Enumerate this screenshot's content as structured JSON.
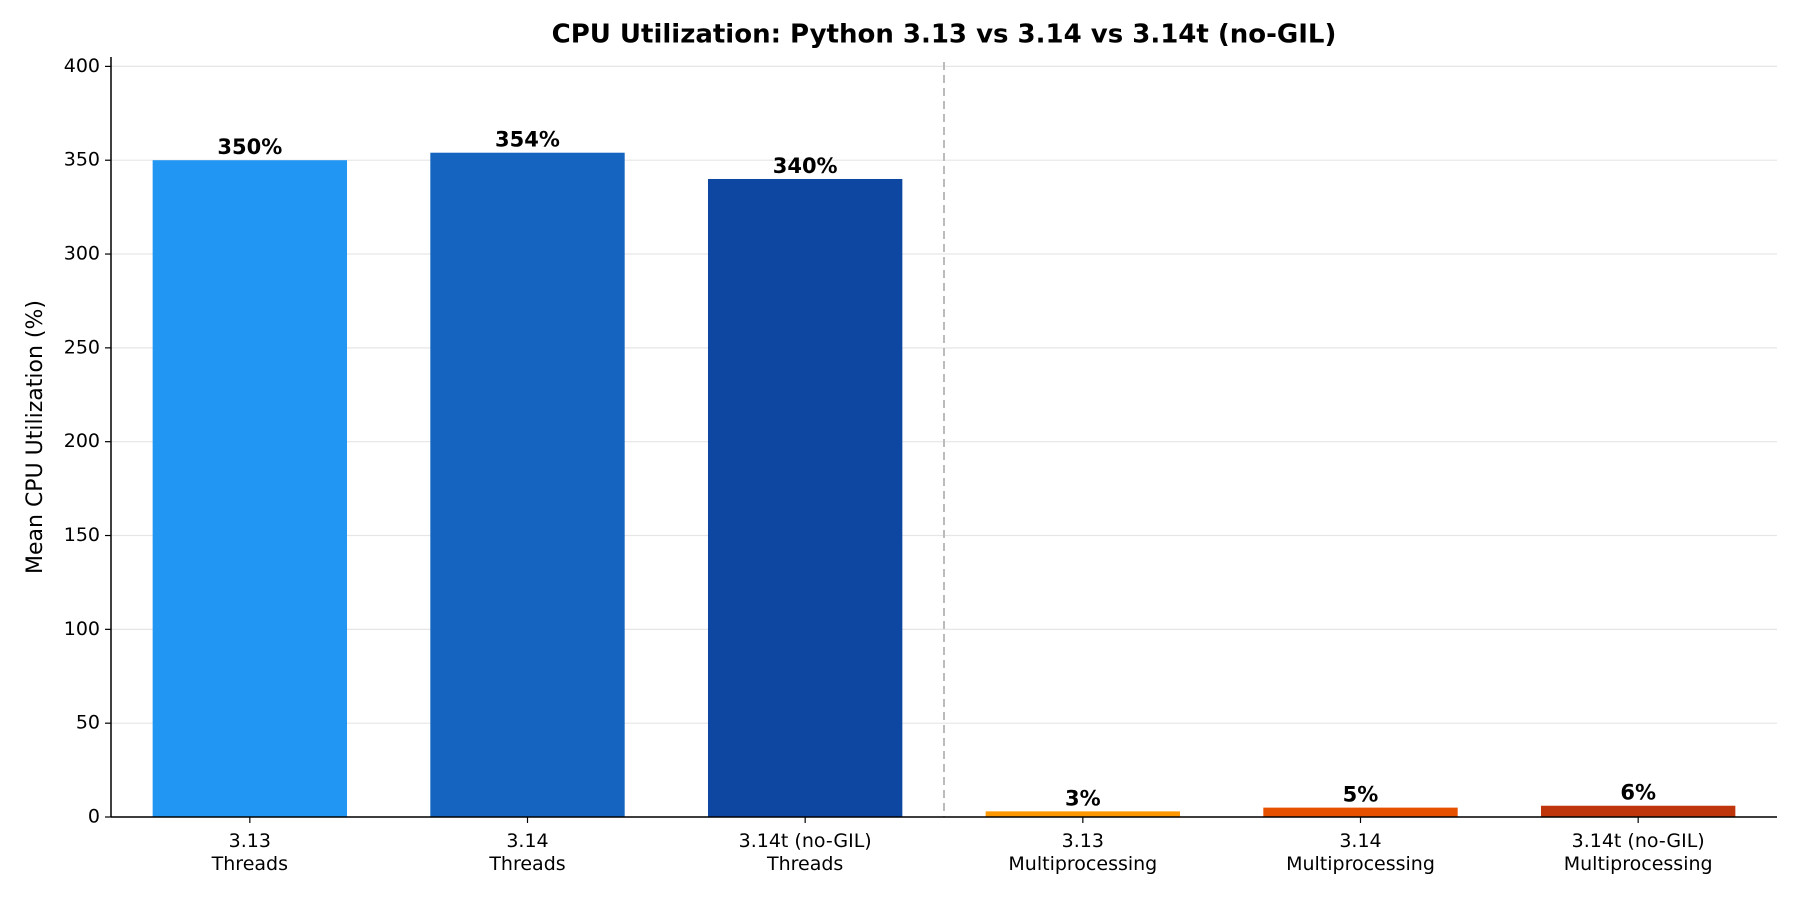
{
  "chart_data": {
    "type": "bar",
    "title": "CPU Utilization: Python 3.13 vs 3.14 vs 3.14t (no-GIL)",
    "y_label": "Mean CPU Utilization (%)",
    "categories": [
      [
        "3.13",
        "Threads"
      ],
      [
        "3.14",
        "Threads"
      ],
      [
        "3.14t (no-GIL)",
        "Threads"
      ],
      [
        "3.13",
        "Multiprocessing"
      ],
      [
        "3.14",
        "Multiprocessing"
      ],
      [
        "3.14t (no-GIL)",
        "Multiprocessing"
      ]
    ],
    "values": [
      350,
      354,
      340,
      3,
      5,
      6
    ],
    "value_labels": [
      "350%",
      "354%",
      "340%",
      "3%",
      "5%",
      "6%"
    ],
    "colors": [
      "#2196f3",
      "#1565c0",
      "#0d47a1",
      "#ff9800",
      "#e65100",
      "#bf360c"
    ],
    "ylim": [
      0,
      405
    ],
    "yticks": [
      0,
      50,
      100,
      150,
      200,
      250,
      300,
      350,
      400
    ],
    "grid": true
  }
}
